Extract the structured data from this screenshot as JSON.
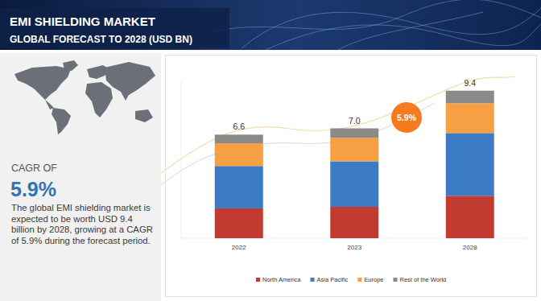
{
  "chart_data": {
    "type": "bar",
    "title": "EMI SHIELDING MARKET",
    "subtitle": "GLOBAL FORECAST TO 2028 (USD BN)",
    "categories": [
      "2022",
      "2023",
      "2028"
    ],
    "series": [
      {
        "name": "North America",
        "color": "#c33b30",
        "values": [
          1.9,
          2.0,
          2.7
        ]
      },
      {
        "name": "Asia Pacific",
        "color": "#3c7bc6",
        "values": [
          2.7,
          2.9,
          4.0
        ]
      },
      {
        "name": "Europe",
        "color": "#f7a043",
        "values": [
          1.45,
          1.5,
          1.9
        ]
      },
      {
        "name": "Rest of the World",
        "color": "#8a8a8a",
        "values": [
          0.55,
          0.6,
          0.8
        ]
      }
    ],
    "totals": [
      6.6,
      7,
      9.4
    ],
    "total_labels": [
      "6.6",
      "7.0",
      "9.4"
    ],
    "annotations": [
      "CAGR OF",
      "5.9%",
      "The global EMI shielding market is expected to be worth USD 9.4 billion by 2028, growing at a CAGR of 5.9% during the forecast period.",
      "5.9%"
    ],
    "ylim": [
      0,
      10
    ],
    "stacked": true,
    "legend": "bottom",
    "tick_labels": "x"
  }
}
